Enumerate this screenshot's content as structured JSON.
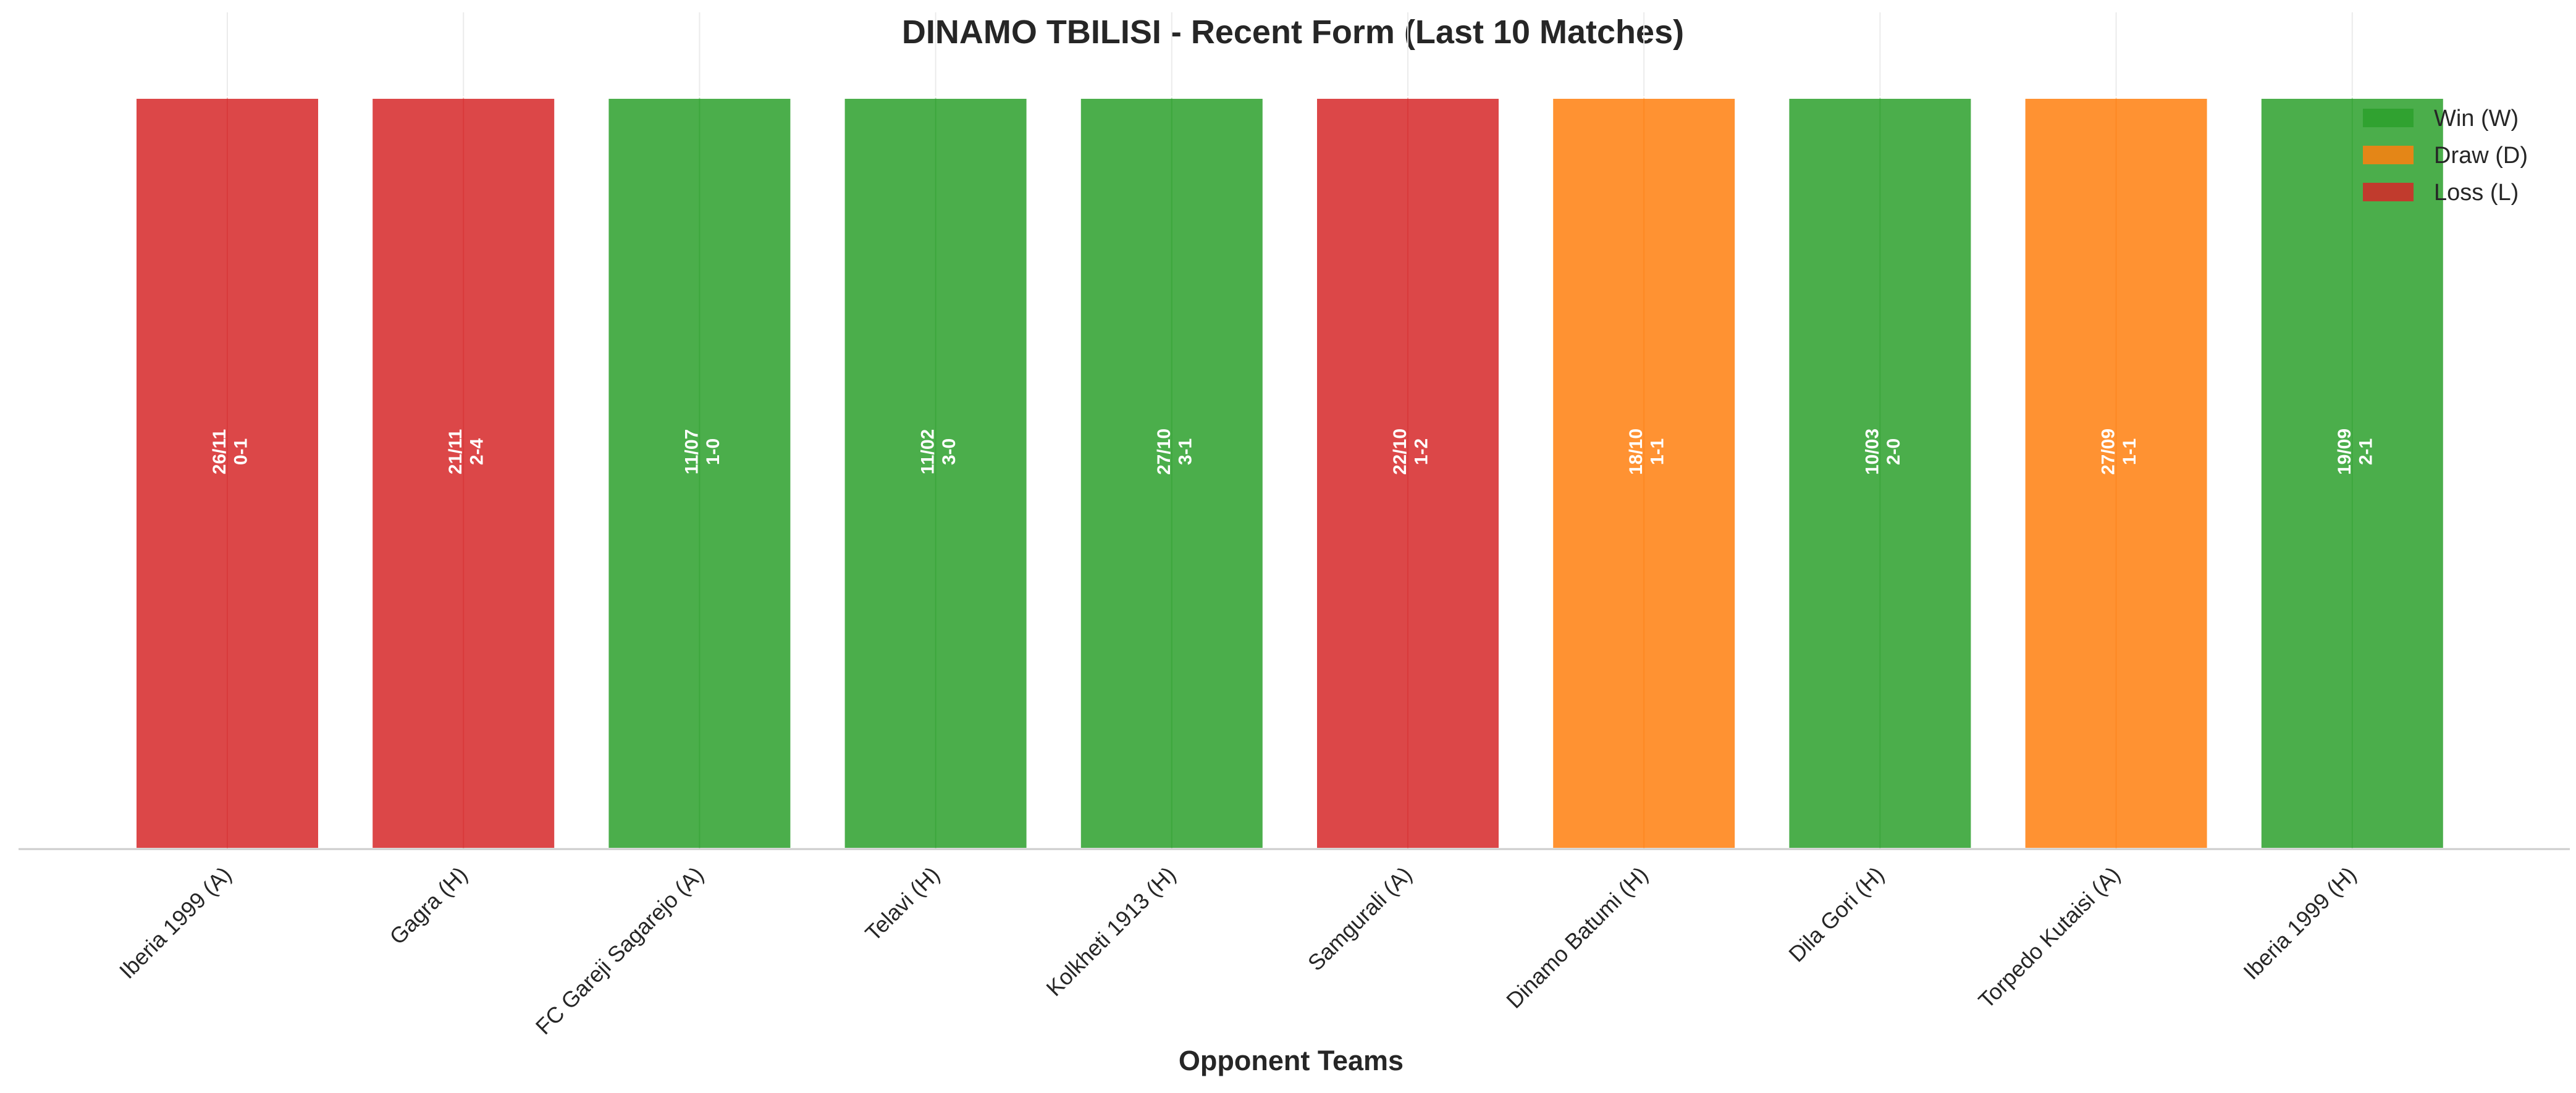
{
  "chart_data": {
    "type": "bar",
    "title": "DINAMO TBILISI - Recent Form (Last 10 Matches)",
    "xlabel": "Opponent Teams",
    "ylabel": "",
    "categories": [
      "Iberia 1999 (A)",
      "Gagra (H)",
      "FC Gareji Sagarejo (A)",
      "Telavi (H)",
      "Kolkheti 1913 (H)",
      "Samgurali (A)",
      "Dinamo Batumi (H)",
      "Dila Gori (H)",
      "Torpedo Kutaisi (A)",
      "Iberia 1999 (H)"
    ],
    "values": [
      1,
      1,
      1,
      1,
      1,
      1,
      1,
      1,
      1,
      1
    ],
    "ylim": [
      0,
      1.13
    ],
    "results": [
      "L",
      "L",
      "W",
      "W",
      "W",
      "L",
      "D",
      "W",
      "D",
      "W"
    ],
    "dates": [
      "26/11",
      "21/11",
      "11/07",
      "11/02",
      "27/10",
      "22/10",
      "18/10",
      "10/03",
      "27/09",
      "19/09"
    ],
    "scores": [
      "0-1",
      "2-4",
      "1-0",
      "3-0",
      "3-1",
      "1-2",
      "1-1",
      "2-0",
      "1-1",
      "2-1"
    ],
    "legend": {
      "position": "top-right",
      "entries": [
        {
          "key": "W",
          "label": "Win (W)"
        },
        {
          "key": "D",
          "label": "Draw (D)"
        },
        {
          "key": "L",
          "label": "Loss (L)"
        }
      ]
    },
    "colors": {
      "W": "#2ca02c",
      "D": "#ff7f0e",
      "L": "#d62728"
    },
    "grid": true
  }
}
